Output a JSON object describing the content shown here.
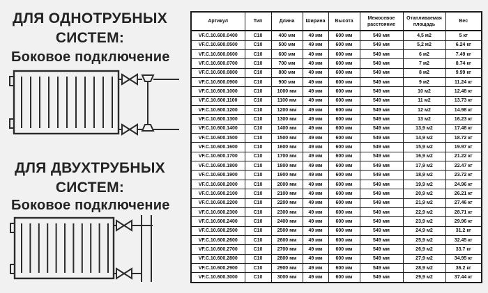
{
  "page": {
    "background_color": "#f1f1f1",
    "heading_color": "#232323",
    "table_border_color": "#1c1c1c",
    "table_background": "#ffffff"
  },
  "sections": [
    {
      "title_line1": "ДЛЯ ОДНОТРУБНЫХ",
      "title_line2": "СИСТЕМ:",
      "subtitle": "Боковое подключение",
      "diagram": "single-pipe-side-connection"
    },
    {
      "title_line1": "ДЛЯ ДВУХТРУБНЫХ",
      "title_line2": "СИСТЕМ:",
      "subtitle": "Боковое подключение",
      "diagram": "two-pipe-side-connection"
    }
  ],
  "table": {
    "columns": [
      "Артикул",
      "Тип",
      "Длина",
      "Ширина",
      "Высота",
      "Межосевое расстояние",
      "Отапливаемая площадь",
      "Вес"
    ],
    "rows": [
      [
        "VF.C.10.600.0400",
        "C10",
        "400 мм",
        "49 мм",
        "600 мм",
        "549 мм",
        "4,5 м2",
        "5 кг"
      ],
      [
        "VF.C.10.600.0500",
        "C10",
        "500 мм",
        "49 мм",
        "600 мм",
        "549 мм",
        "5,2 м2",
        "6.24 кг"
      ],
      [
        "VF.C.10.600.0600",
        "C10",
        "600 мм",
        "49 мм",
        "600 мм",
        "549 мм",
        "6 м2",
        "7.49 кг"
      ],
      [
        "VF.C.10.600.0700",
        "C10",
        "700 мм",
        "49 мм",
        "600 мм",
        "549 мм",
        "7 м2",
        "8.74 кг"
      ],
      [
        "VF.C.10.600.0800",
        "C10",
        "800 мм",
        "49 мм",
        "600 мм",
        "549 мм",
        "8 м2",
        "9.99 кг"
      ],
      [
        "VF.C.10.600.0900",
        "C10",
        "900 мм",
        "49 мм",
        "600 мм",
        "549 мм",
        "9 м2",
        "11.24 кг"
      ],
      [
        "VF.C.10.600.1000",
        "C10",
        "1000 мм",
        "49 мм",
        "600 мм",
        "549 мм",
        "10 м2",
        "12.48 кг"
      ],
      [
        "VF.C.10.600.1100",
        "C10",
        "1100 мм",
        "49 мм",
        "600 мм",
        "549 мм",
        "11 м2",
        "13.73 кг"
      ],
      [
        "VF.C.10.600.1200",
        "C10",
        "1200 мм",
        "49 мм",
        "600 мм",
        "549 мм",
        "12 м2",
        "14.98 кг"
      ],
      [
        "VF.C.10.600.1300",
        "C10",
        "1300 мм",
        "49 мм",
        "600 мм",
        "549 мм",
        "13 м2",
        "16.23 кг"
      ],
      [
        "VF.C.10.600.1400",
        "C10",
        "1400 мм",
        "49 мм",
        "600 мм",
        "549 мм",
        "13,9 м2",
        "17.48 кг"
      ],
      [
        "VF.C.10.600.1500",
        "C10",
        "1500 мм",
        "49 мм",
        "600 мм",
        "549 мм",
        "14,9 м2",
        "18.72 кг"
      ],
      [
        "VF.C.10.600.1600",
        "C10",
        "1600 мм",
        "49 мм",
        "600 мм",
        "549 мм",
        "15,9 м2",
        "19.97 кг"
      ],
      [
        "VF.C.10.600.1700",
        "C10",
        "1700 мм",
        "49 мм",
        "600 мм",
        "549 мм",
        "16,9 м2",
        "21.22 кг"
      ],
      [
        "VF.C.10.600.1800",
        "C10",
        "1800 мм",
        "49 мм",
        "600 мм",
        "549 мм",
        "17,9 м2",
        "22.47 кг"
      ],
      [
        "VF.C.10.600.1900",
        "C10",
        "1900 мм",
        "49 мм",
        "600 мм",
        "549 мм",
        "18,9 м2",
        "23.72 кг"
      ],
      [
        "VF.C.10.600.2000",
        "C10",
        "2000 мм",
        "49 мм",
        "600 мм",
        "549 мм",
        "19,9 м2",
        "24.96 кг"
      ],
      [
        "VF.C.10.600.2100",
        "C10",
        "2100 мм",
        "49 мм",
        "600 мм",
        "549 мм",
        "20,9 м2",
        "26.21 кг"
      ],
      [
        "VF.C.10.600.2200",
        "C10",
        "2200 мм",
        "49 мм",
        "600 мм",
        "549 мм",
        "21,9 м2",
        "27.46 кг"
      ],
      [
        "VF.C.10.600.2300",
        "C10",
        "2300 мм",
        "49 мм",
        "600 мм",
        "549 мм",
        "22,9 м2",
        "28.71 кг"
      ],
      [
        "VF.C.10.600.2400",
        "C10",
        "2400 мм",
        "49 мм",
        "600 мм",
        "549 мм",
        "23,9 м2",
        "29.96 кг"
      ],
      [
        "VF.C.10.600.2500",
        "C10",
        "2500 мм",
        "49 мм",
        "600 мм",
        "549 мм",
        "24,9 м2",
        "31.2 кг"
      ],
      [
        "VF.C.10.600.2600",
        "C10",
        "2600 мм",
        "49 мм",
        "600 мм",
        "549 мм",
        "25,9 м2",
        "32.45 кг"
      ],
      [
        "VF.C.10.600.2700",
        "C10",
        "2700 мм",
        "49 мм",
        "600 мм",
        "549 мм",
        "26,9 м2",
        "33.7 кг"
      ],
      [
        "VF.C.10.600.2800",
        "C10",
        "2800 мм",
        "49 мм",
        "600 мм",
        "549 мм",
        "27,9 м2",
        "34.95 кг"
      ],
      [
        "VF.C.10.600.2900",
        "C10",
        "2900 мм",
        "49 мм",
        "600 мм",
        "549 мм",
        "28,9 м2",
        "36.2 кг"
      ],
      [
        "VF.C.10.600.3000",
        "C10",
        "3000 мм",
        "49 мм",
        "600 мм",
        "549 мм",
        "29,9 м2",
        "37.44 кг"
      ]
    ]
  }
}
